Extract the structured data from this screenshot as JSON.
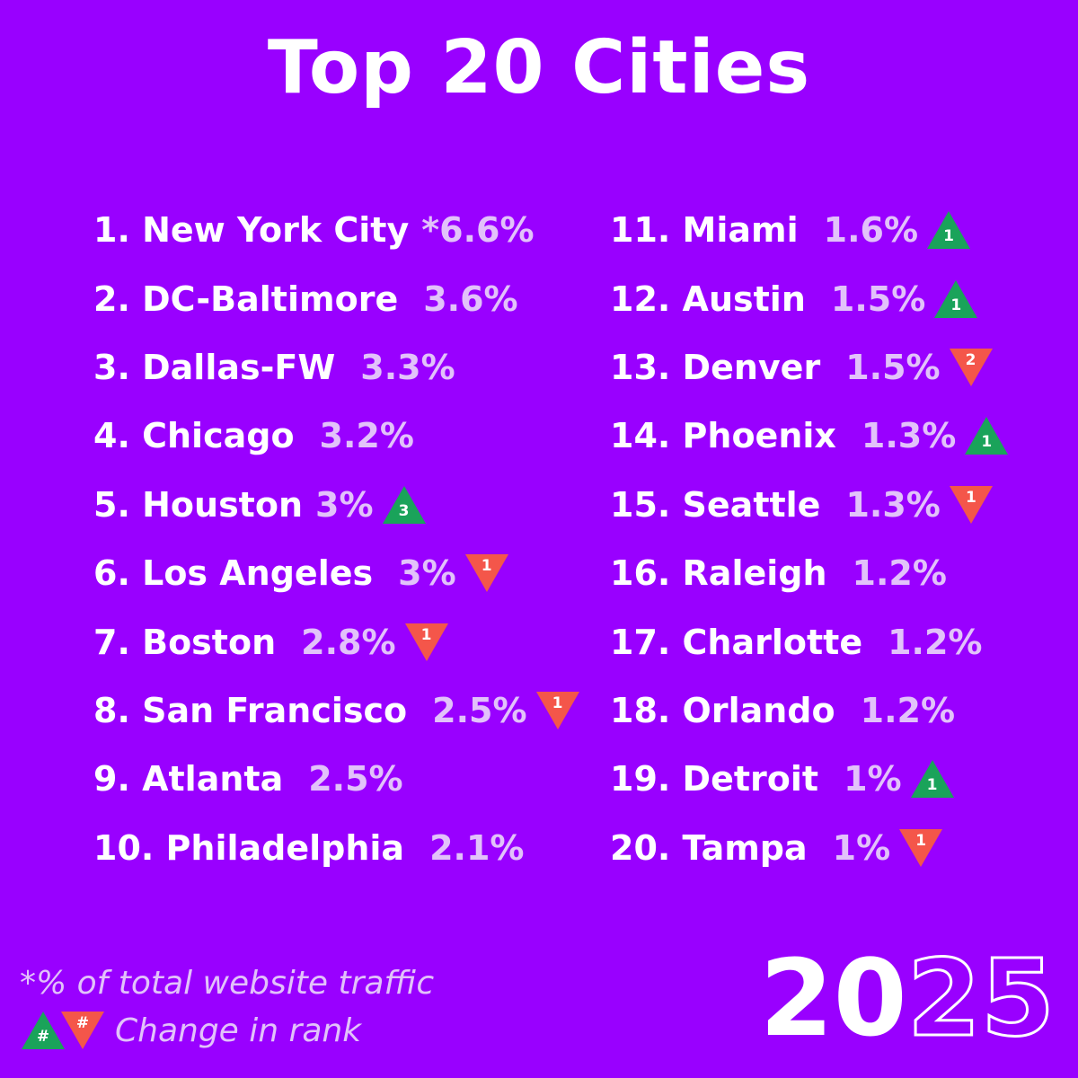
{
  "title": "Top 20 Cities",
  "colors": {
    "background": "#9900ff",
    "up": "#1aa35a",
    "down": "#f4564a",
    "pct": "#e2c2fa"
  },
  "cities": [
    {
      "rank_label": "1. New York City",
      "pct": "*6.6%",
      "change": null
    },
    {
      "rank_label": "2. DC-Baltimore",
      "pct": "3.6%",
      "change": null
    },
    {
      "rank_label": "3. Dallas-FW",
      "pct": "3.3%",
      "change": null
    },
    {
      "rank_label": "4. Chicago",
      "pct": "3.2%",
      "change": null
    },
    {
      "rank_label": "5. Houston",
      "pct": "3%",
      "change": {
        "dir": "up",
        "value": "3"
      }
    },
    {
      "rank_label": "6. Los Angeles",
      "pct": "3%",
      "change": {
        "dir": "down",
        "value": "1"
      }
    },
    {
      "rank_label": "7. Boston",
      "pct": "2.8%",
      "change": {
        "dir": "down",
        "value": "1"
      }
    },
    {
      "rank_label": "8. San Francisco",
      "pct": "2.5%",
      "change": {
        "dir": "down",
        "value": "1"
      }
    },
    {
      "rank_label": "9. Atlanta",
      "pct": "2.5%",
      "change": null
    },
    {
      "rank_label": "10. Philadelphia",
      "pct": "2.1%",
      "change": null
    },
    {
      "rank_label": "11. Miami",
      "pct": "1.6%",
      "change": {
        "dir": "up",
        "value": "1"
      }
    },
    {
      "rank_label": "12. Austin",
      "pct": "1.5%",
      "change": {
        "dir": "up",
        "value": "1"
      }
    },
    {
      "rank_label": "13. Denver",
      "pct": "1.5%",
      "change": {
        "dir": "down",
        "value": "2"
      }
    },
    {
      "rank_label": "14. Phoenix",
      "pct": "1.3%",
      "change": {
        "dir": "up",
        "value": "1"
      }
    },
    {
      "rank_label": "15. Seattle",
      "pct": "1.3%",
      "change": {
        "dir": "down",
        "value": "1"
      }
    },
    {
      "rank_label": "16. Raleigh",
      "pct": "1.2%",
      "change": null
    },
    {
      "rank_label": "17. Charlotte",
      "pct": "1.2%",
      "change": null
    },
    {
      "rank_label": "18. Orlando",
      "pct": "1.2%",
      "change": null
    },
    {
      "rank_label": "19. Detroit",
      "pct": "1%",
      "change": {
        "dir": "up",
        "value": "1"
      }
    },
    {
      "rank_label": "20. Tampa",
      "pct": "1%",
      "change": {
        "dir": "down",
        "value": "1"
      }
    }
  ],
  "footnote": "*% of total website traffic",
  "legend": {
    "up_symbol": "#",
    "down_symbol": "#",
    "text": "Change in rank"
  },
  "year": {
    "part1": "20",
    "part2": "25"
  }
}
